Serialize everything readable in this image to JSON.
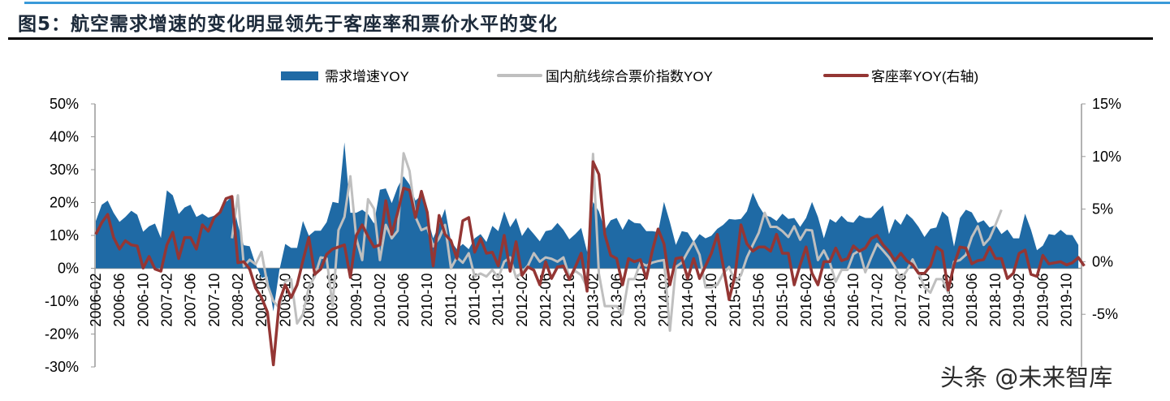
{
  "title": "图5：航空需求增速的变化明显领先于客座率和票价水平的变化",
  "watermark": "头条 @未来智库",
  "chart_data": {
    "type": "area+line",
    "title": "图5：航空需求增速的变化明显领先于客座率和票价水平的变化",
    "legend_position": "top",
    "grid": false,
    "x_tick_labels": [
      "2006-02",
      "2006-06",
      "2006-10",
      "2007-02",
      "2007-06",
      "2007-10",
      "2008-02",
      "2008-06",
      "2008-10",
      "2009-02",
      "2009-06",
      "2009-10",
      "2010-02",
      "2010-06",
      "2010-10",
      "2011-02",
      "2011-06",
      "2011-10",
      "2012-02",
      "2012-06",
      "2012-10",
      "2013-02",
      "2013-06",
      "2013-10",
      "2014-02",
      "2014-06",
      "2014-10",
      "2015-02",
      "2015-06",
      "2015-10",
      "2016-02",
      "2016-06",
      "2016-10",
      "2017-02",
      "2017-06",
      "2017-10",
      "2018-02",
      "2018-06",
      "2018-10",
      "2019-02",
      "2019-06",
      "2019-10"
    ],
    "x_range": [
      "2006-02",
      "2019-12"
    ],
    "y_left": {
      "ylim": [
        -30,
        50
      ],
      "ticks": [
        "50%",
        "40%",
        "30%",
        "20%",
        "10%",
        "0%",
        "-10%",
        "-20%",
        "-30%"
      ]
    },
    "y_right": {
      "ylim": [
        -10,
        15
      ],
      "ticks": [
        "15%",
        "10%",
        "5%",
        "0%",
        "-5%"
      ]
    },
    "series": [
      {
        "name": "需求增速YOY",
        "type": "area",
        "axis": "left",
        "color": "#1f6aa5",
        "start": "2006-02",
        "values": [
          14.4,
          19.3,
          20.6,
          16.9,
          14.1,
          15.6,
          17.5,
          16.3,
          11.1,
          12.8,
          13.6,
          9.2,
          23.7,
          22.2,
          16.5,
          18.5,
          19.3,
          15.6,
          16.6,
          15.4,
          16,
          17.3,
          20.2,
          21.8,
          13.2,
          7,
          6.7,
          1.2,
          -2.9,
          -2.5,
          -13.1,
          -0.7,
          7.4,
          6.2,
          6.2,
          14.4,
          9.9,
          11.4,
          11.4,
          14,
          20.2,
          19.8,
          38.3,
          16.9,
          16.9,
          17.8,
          16.5,
          13.6,
          23.9,
          24.3,
          19.8,
          24.7,
          28,
          25.5,
          20.6,
          22.2,
          15.6,
          9.1,
          13.2,
          18.1,
          8.2,
          5.8,
          7.4,
          5.8,
          9.1,
          10.4,
          8,
          12.9,
          11.3,
          17.3,
          12.5,
          15.3,
          9.8,
          12.5,
          10.4,
          8.2,
          11.3,
          11.7,
          13.8,
          11.7,
          8.8,
          10.4,
          12.3,
          5,
          20.2,
          17.3,
          11.7,
          14.6,
          15.3,
          11.7,
          15,
          13.8,
          13.6,
          11.3,
          11.3,
          11,
          20.2,
          14,
          7.1,
          11.3,
          10.9,
          8,
          10.4,
          9.1,
          9.9,
          12,
          13.2,
          15,
          14.8,
          15,
          17.3,
          23,
          19,
          16.1,
          15.6,
          14.4,
          16.6,
          15,
          15.3,
          12.6,
          15.3,
          20.2,
          15.6,
          9.1,
          15,
          13.9,
          16,
          14.2,
          13.9,
          16.1,
          15.3,
          15.3,
          17.3,
          19.1,
          10.4,
          15,
          13.2,
          16.6,
          15,
          12.6,
          9.5,
          12,
          12.4,
          17.3,
          15.6,
          6.6,
          15.3,
          17.8,
          17,
          13.8,
          14.6,
          12.4,
          13.2,
          10.4,
          11.8,
          9.1,
          9.1,
          16.6,
          11.7,
          5.5,
          6.9,
          10.4,
          10.1,
          11.7,
          10.2,
          10.1,
          7.1
        ]
      },
      {
        "name": "国内航线综合票价指数YOY",
        "type": "line",
        "axis": "left",
        "color": "#bfbfbf",
        "start": "2008-01",
        "values": [
          9.1,
          22.2,
          0.6,
          2.6,
          1.2,
          5,
          -5,
          -10,
          -12,
          -4,
          -3.3,
          -16.8,
          -14,
          -5.7,
          -2.5,
          3.3,
          3,
          -11.5,
          11.6,
          15.6,
          28,
          9.1,
          2.5,
          21,
          18.1,
          2.5,
          13.2,
          9.1,
          11.4,
          35,
          29.6,
          15.6,
          11.6,
          12.4,
          6.7,
          9.1,
          13.2,
          0,
          3.3,
          1.7,
          4.6,
          -2.5,
          -1.6,
          -2.5,
          -0.5,
          -2.9,
          2,
          3.3,
          -2.9,
          -1.2,
          0.8,
          4.6,
          2,
          3.3,
          2.9,
          2,
          3.3,
          -2.5,
          -0.8,
          -2.1,
          -5.8,
          34.8,
          -1.6,
          -11.5,
          -11.5,
          -11.5,
          -14,
          -3.3,
          -3.3,
          1.7,
          0.8,
          1.7,
          2.2,
          2.5,
          -19,
          0.4,
          1.7,
          5,
          8,
          4.1,
          -5.8,
          -5.8,
          -5,
          -1.6,
          0.4,
          -4.1,
          -2.1,
          3.3,
          7.1,
          10.8,
          16.9,
          12.6,
          12.6,
          11.3,
          9.5,
          12.8,
          8.7,
          11.7,
          11.5,
          2.5,
          5.4,
          1.7,
          -4.1,
          -0.5,
          -0.5,
          4.3,
          5.4,
          -1.2,
          3.3,
          7.4,
          5.4,
          3.3,
          0.4,
          -3.3,
          -0.8,
          2.7,
          -1.2,
          -5.8,
          -7.4,
          -3.3,
          -3.3,
          -7.4,
          2,
          2.5,
          4.1,
          9.5,
          12.8,
          7.1,
          9.1,
          13.2,
          17.8
        ]
      },
      {
        "name": "客座率YOY(右轴)",
        "type": "line",
        "axis": "right",
        "color": "#943634",
        "start": "2006-02",
        "values": [
          2.6,
          3.7,
          4.5,
          2.3,
          1.2,
          2,
          1.6,
          1.5,
          -0.6,
          0.5,
          -0.7,
          -0.9,
          1.6,
          2.8,
          0.3,
          2.3,
          2.3,
          1.2,
          3.5,
          2.9,
          4.2,
          4.7,
          6,
          6.2,
          -0.1,
          0,
          -0.7,
          -2.5,
          -3.4,
          -4.8,
          -9.8,
          -3.8,
          -2.2,
          -3.4,
          -2.2,
          0.1,
          2.3,
          -1.2,
          -0.7,
          0.7,
          1.2,
          1.4,
          1.6,
          -1.5,
          2.5,
          3.5,
          2.4,
          1.4,
          1.6,
          5.8,
          2.6,
          4.7,
          7,
          6.8,
          4.2,
          6.7,
          4.7,
          -0.4,
          4.4,
          2.6,
          2,
          0.3,
          3.9,
          4.2,
          0.9,
          2.2,
          0.8,
          0.9,
          -0.4,
          2.5,
          -0.9,
          1.9,
          -1.3,
          -0.5,
          -0.8,
          -2.2,
          0,
          -1.6,
          -0.5,
          -0.4,
          -1.7,
          -0.5,
          0.8,
          -2.8,
          9.5,
          8.3,
          2.6,
          0.6,
          0.3,
          -2.2,
          0.3,
          0,
          0.2,
          -1.6,
          1,
          3.1,
          1.7,
          -2.2,
          0.3,
          0.4,
          -1.6,
          0.3,
          -1.6,
          -0.4,
          0.8,
          2.6,
          -0.4,
          -3.6,
          -1.3,
          3.5,
          1.7,
          1,
          1.4,
          1.4,
          1,
          2.6,
          0.8,
          0.8,
          -2.2,
          -0.3,
          1.4,
          -1.1,
          -2.2,
          0,
          0,
          1.3,
          0.1,
          0.3,
          1.5,
          1,
          1.3,
          2.2,
          2.5,
          1.6,
          1,
          0.1,
          0.8,
          0.1,
          -0.3,
          -1.1,
          -1.1,
          -0.4,
          1.4,
          1,
          -2.7,
          -0.3,
          1.4,
          1.3,
          -0.2,
          0.1,
          0.2,
          1.4,
          0.3,
          0.3,
          -1.6,
          -1.1,
          0.8,
          1.1,
          -1.2,
          -1.4,
          0.6,
          -0.2,
          -0.1,
          0,
          -0.3,
          -0.1,
          0.4,
          -0.4
        ]
      }
    ]
  }
}
